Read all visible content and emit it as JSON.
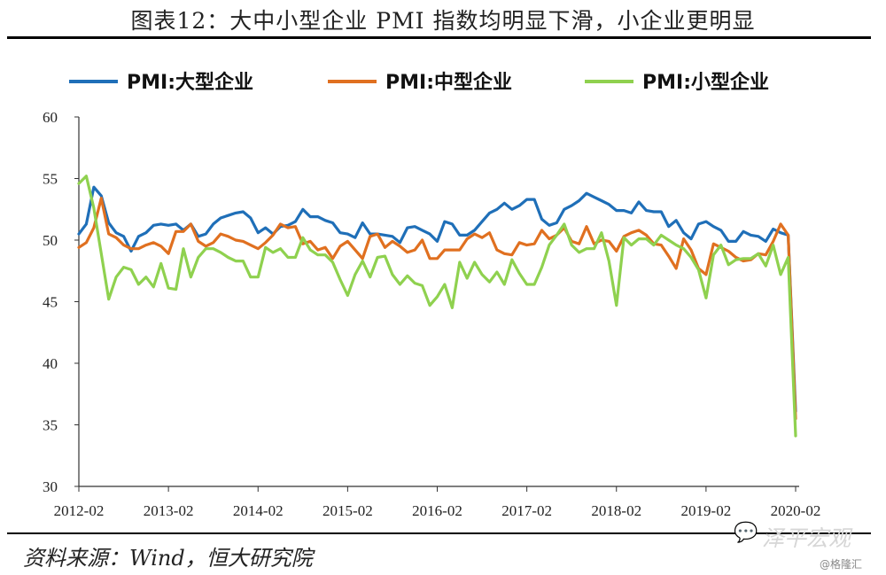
{
  "title": "图表12：大中小型企业 PMI 指数均明显下滑，小企业更明显",
  "source": "资料来源：Wind，恒大研究院",
  "watermark": {
    "name": "泽平宏观",
    "credit": "@格隆汇"
  },
  "chart_data": {
    "type": "line",
    "title": "图表12：大中小型企业 PMI 指数均明显下滑，小企业更明显",
    "xlabel": "",
    "ylabel": "",
    "ylim": [
      30,
      60
    ],
    "yticks": [
      30,
      35,
      40,
      45,
      50,
      55,
      60
    ],
    "xticks": [
      "2012-02",
      "2013-02",
      "2014-02",
      "2015-02",
      "2016-02",
      "2017-02",
      "2018-02",
      "2019-02",
      "2020-02"
    ],
    "legend_position": "top",
    "grid": false,
    "series": [
      {
        "name": "PMI:大型企业",
        "color": "#1f6fb8",
        "points": [
          [
            "2012-02",
            50.5
          ],
          [
            "2012-03",
            51.3
          ],
          [
            "2012-04",
            54.3
          ],
          [
            "2012-05",
            53.6
          ],
          [
            "2012-06",
            51.4
          ],
          [
            "2012-07",
            50.6
          ],
          [
            "2012-08",
            50.3
          ],
          [
            "2012-09",
            49.1
          ],
          [
            "2012-10",
            50.3
          ],
          [
            "2012-11",
            50.6
          ],
          [
            "2012-12",
            51.2
          ],
          [
            "2013-01",
            51.3
          ],
          [
            "2013-02",
            51.2
          ],
          [
            "2013-03",
            51.3
          ],
          [
            "2013-04",
            50.8
          ],
          [
            "2013-05",
            51.3
          ],
          [
            "2013-06",
            50.3
          ],
          [
            "2013-07",
            50.5
          ],
          [
            "2013-08",
            51.3
          ],
          [
            "2013-09",
            51.8
          ],
          [
            "2013-10",
            52.0
          ],
          [
            "2013-11",
            52.2
          ],
          [
            "2013-12",
            52.3
          ],
          [
            "2014-01",
            51.8
          ],
          [
            "2014-02",
            50.6
          ],
          [
            "2014-03",
            51.0
          ],
          [
            "2014-04",
            50.5
          ],
          [
            "2014-05",
            51.1
          ],
          [
            "2014-06",
            51.2
          ],
          [
            "2014-07",
            51.5
          ],
          [
            "2014-08",
            52.5
          ],
          [
            "2014-09",
            51.9
          ],
          [
            "2014-10",
            51.9
          ],
          [
            "2014-11",
            51.6
          ],
          [
            "2014-12",
            51.4
          ],
          [
            "2015-01",
            50.6
          ],
          [
            "2015-02",
            50.5
          ],
          [
            "2015-03",
            50.2
          ],
          [
            "2015-04",
            51.4
          ],
          [
            "2015-05",
            50.5
          ],
          [
            "2015-06",
            50.5
          ],
          [
            "2015-07",
            50.4
          ],
          [
            "2015-08",
            50.3
          ],
          [
            "2015-09",
            49.8
          ],
          [
            "2015-10",
            51.0
          ],
          [
            "2015-11",
            51.1
          ],
          [
            "2015-12",
            50.8
          ],
          [
            "2016-01",
            50.5
          ],
          [
            "2016-02",
            49.9
          ],
          [
            "2016-03",
            51.5
          ],
          [
            "2016-04",
            51.3
          ],
          [
            "2016-05",
            50.4
          ],
          [
            "2016-06",
            50.4
          ],
          [
            "2016-07",
            50.8
          ],
          [
            "2016-08",
            51.5
          ],
          [
            "2016-09",
            52.2
          ],
          [
            "2016-10",
            52.5
          ],
          [
            "2016-11",
            53.0
          ],
          [
            "2016-12",
            52.5
          ],
          [
            "2017-01",
            52.8
          ],
          [
            "2017-02",
            53.3
          ],
          [
            "2017-03",
            53.3
          ],
          [
            "2017-04",
            51.7
          ],
          [
            "2017-05",
            51.2
          ],
          [
            "2017-06",
            51.4
          ],
          [
            "2017-07",
            52.5
          ],
          [
            "2017-08",
            52.8
          ],
          [
            "2017-09",
            53.2
          ],
          [
            "2017-10",
            53.8
          ],
          [
            "2017-11",
            53.5
          ],
          [
            "2017-12",
            53.2
          ],
          [
            "2018-01",
            52.9
          ],
          [
            "2018-02",
            52.4
          ],
          [
            "2018-03",
            52.4
          ],
          [
            "2018-04",
            52.2
          ],
          [
            "2018-05",
            53.1
          ],
          [
            "2018-06",
            52.4
          ],
          [
            "2018-07",
            52.3
          ],
          [
            "2018-08",
            52.3
          ],
          [
            "2018-09",
            51.1
          ],
          [
            "2018-10",
            51.6
          ],
          [
            "2018-11",
            50.6
          ],
          [
            "2018-12",
            50.1
          ],
          [
            "2019-01",
            51.3
          ],
          [
            "2019-02",
            51.5
          ],
          [
            "2019-03",
            51.1
          ],
          [
            "2019-04",
            50.8
          ],
          [
            "2019-05",
            49.9
          ],
          [
            "2019-06",
            49.9
          ],
          [
            "2019-07",
            50.7
          ],
          [
            "2019-08",
            50.4
          ],
          [
            "2019-09",
            50.3
          ],
          [
            "2019-10",
            49.9
          ],
          [
            "2019-11",
            50.9
          ],
          [
            "2019-12",
            50.6
          ],
          [
            "2020-01",
            50.4
          ],
          [
            "2020-02",
            36.1
          ]
        ]
      },
      {
        "name": "PMI:中型企业",
        "color": "#e07020",
        "points": [
          [
            "2012-02",
            49.4
          ],
          [
            "2012-03",
            49.8
          ],
          [
            "2012-04",
            51.0
          ],
          [
            "2012-05",
            53.4
          ],
          [
            "2012-06",
            50.5
          ],
          [
            "2012-07",
            50.2
          ],
          [
            "2012-08",
            49.6
          ],
          [
            "2012-09",
            49.3
          ],
          [
            "2012-10",
            49.3
          ],
          [
            "2012-11",
            49.6
          ],
          [
            "2012-12",
            49.8
          ],
          [
            "2013-01",
            49.5
          ],
          [
            "2013-02",
            48.9
          ],
          [
            "2013-03",
            50.7
          ],
          [
            "2013-04",
            50.7
          ],
          [
            "2013-05",
            51.3
          ],
          [
            "2013-06",
            49.9
          ],
          [
            "2013-07",
            49.5
          ],
          [
            "2013-08",
            49.8
          ],
          [
            "2013-09",
            50.5
          ],
          [
            "2013-10",
            50.3
          ],
          [
            "2013-11",
            50.0
          ],
          [
            "2013-12",
            49.9
          ],
          [
            "2014-01",
            49.6
          ],
          [
            "2014-02",
            49.3
          ],
          [
            "2014-03",
            49.8
          ],
          [
            "2014-04",
            50.4
          ],
          [
            "2014-05",
            51.3
          ],
          [
            "2014-06",
            51.0
          ],
          [
            "2014-07",
            51.1
          ],
          [
            "2014-08",
            49.7
          ],
          [
            "2014-09",
            49.9
          ],
          [
            "2014-10",
            49.2
          ],
          [
            "2014-11",
            49.4
          ],
          [
            "2014-12",
            48.5
          ],
          [
            "2015-01",
            49.5
          ],
          [
            "2015-02",
            49.9
          ],
          [
            "2015-03",
            49.2
          ],
          [
            "2015-04",
            48.5
          ],
          [
            "2015-05",
            50.3
          ],
          [
            "2015-06",
            50.5
          ],
          [
            "2015-07",
            49.4
          ],
          [
            "2015-08",
            49.9
          ],
          [
            "2015-09",
            49.5
          ],
          [
            "2015-10",
            49.0
          ],
          [
            "2015-11",
            49.2
          ],
          [
            "2015-12",
            50.0
          ],
          [
            "2016-01",
            48.5
          ],
          [
            "2016-02",
            48.5
          ],
          [
            "2016-03",
            49.2
          ],
          [
            "2016-04",
            49.2
          ],
          [
            "2016-05",
            49.2
          ],
          [
            "2016-06",
            50.1
          ],
          [
            "2016-07",
            50.5
          ],
          [
            "2016-08",
            50.2
          ],
          [
            "2016-09",
            50.6
          ],
          [
            "2016-10",
            49.2
          ],
          [
            "2016-11",
            48.9
          ],
          [
            "2016-12",
            48.8
          ],
          [
            "2017-01",
            49.8
          ],
          [
            "2017-02",
            49.6
          ],
          [
            "2017-03",
            49.7
          ],
          [
            "2017-04",
            50.8
          ],
          [
            "2017-05",
            50.1
          ],
          [
            "2017-06",
            50.4
          ],
          [
            "2017-07",
            51.0
          ],
          [
            "2017-08",
            49.9
          ],
          [
            "2017-09",
            49.7
          ],
          [
            "2017-10",
            51.1
          ],
          [
            "2017-11",
            49.7
          ],
          [
            "2017-12",
            50.0
          ],
          [
            "2018-01",
            49.9
          ],
          [
            "2018-02",
            49.1
          ],
          [
            "2018-03",
            50.3
          ],
          [
            "2018-04",
            50.6
          ],
          [
            "2018-05",
            50.8
          ],
          [
            "2018-06",
            50.4
          ],
          [
            "2018-07",
            49.7
          ],
          [
            "2018-08",
            49.6
          ],
          [
            "2018-09",
            48.7
          ],
          [
            "2018-10",
            47.7
          ],
          [
            "2018-11",
            50.1
          ],
          [
            "2018-12",
            49.2
          ],
          [
            "2019-01",
            47.7
          ],
          [
            "2019-02",
            47.2
          ],
          [
            "2019-03",
            49.7
          ],
          [
            "2019-04",
            49.4
          ],
          [
            "2019-05",
            49.1
          ],
          [
            "2019-06",
            48.6
          ],
          [
            "2019-07",
            48.3
          ],
          [
            "2019-08",
            48.4
          ],
          [
            "2019-09",
            48.9
          ],
          [
            "2019-10",
            48.8
          ],
          [
            "2019-11",
            49.9
          ],
          [
            "2019-12",
            51.3
          ],
          [
            "2020-01",
            50.4
          ],
          [
            "2020-02",
            35.5
          ]
        ]
      },
      {
        "name": "PMI:小型企业",
        "color": "#8fd14f",
        "points": [
          [
            "2012-02",
            54.6
          ],
          [
            "2012-03",
            55.2
          ],
          [
            "2012-04",
            52.6
          ],
          [
            "2012-05",
            48.9
          ],
          [
            "2012-06",
            45.2
          ],
          [
            "2012-07",
            47.0
          ],
          [
            "2012-08",
            47.8
          ],
          [
            "2012-09",
            47.6
          ],
          [
            "2012-10",
            46.4
          ],
          [
            "2012-11",
            47.0
          ],
          [
            "2012-12",
            46.2
          ],
          [
            "2013-01",
            48.1
          ],
          [
            "2013-02",
            46.1
          ],
          [
            "2013-03",
            46.0
          ],
          [
            "2013-04",
            49.3
          ],
          [
            "2013-05",
            47.0
          ],
          [
            "2013-06",
            48.6
          ],
          [
            "2013-07",
            49.3
          ],
          [
            "2013-08",
            49.3
          ],
          [
            "2013-09",
            49.0
          ],
          [
            "2013-10",
            48.6
          ],
          [
            "2013-11",
            48.3
          ],
          [
            "2013-12",
            48.3
          ],
          [
            "2014-01",
            47.0
          ],
          [
            "2014-02",
            47.0
          ],
          [
            "2014-03",
            49.4
          ],
          [
            "2014-04",
            49.0
          ],
          [
            "2014-05",
            49.3
          ],
          [
            "2014-06",
            48.6
          ],
          [
            "2014-07",
            48.6
          ],
          [
            "2014-08",
            50.2
          ],
          [
            "2014-09",
            49.2
          ],
          [
            "2014-10",
            48.8
          ],
          [
            "2014-11",
            48.8
          ],
          [
            "2014-12",
            48.2
          ],
          [
            "2015-01",
            46.8
          ],
          [
            "2015-02",
            45.5
          ],
          [
            "2015-03",
            47.2
          ],
          [
            "2015-04",
            48.3
          ],
          [
            "2015-05",
            47.0
          ],
          [
            "2015-06",
            48.6
          ],
          [
            "2015-07",
            48.7
          ],
          [
            "2015-08",
            47.2
          ],
          [
            "2015-09",
            46.4
          ],
          [
            "2015-10",
            47.1
          ],
          [
            "2015-11",
            46.5
          ],
          [
            "2015-12",
            46.3
          ],
          [
            "2016-01",
            44.7
          ],
          [
            "2016-02",
            45.4
          ],
          [
            "2016-03",
            46.4
          ],
          [
            "2016-04",
            44.5
          ],
          [
            "2016-05",
            48.2
          ],
          [
            "2016-06",
            46.9
          ],
          [
            "2016-07",
            48.2
          ],
          [
            "2016-08",
            47.2
          ],
          [
            "2016-09",
            46.6
          ],
          [
            "2016-10",
            47.4
          ],
          [
            "2016-11",
            46.4
          ],
          [
            "2016-12",
            48.4
          ],
          [
            "2017-01",
            47.3
          ],
          [
            "2017-02",
            46.4
          ],
          [
            "2017-03",
            46.4
          ],
          [
            "2017-04",
            47.8
          ],
          [
            "2017-05",
            49.6
          ],
          [
            "2017-06",
            50.4
          ],
          [
            "2017-07",
            51.3
          ],
          [
            "2017-08",
            49.6
          ],
          [
            "2017-09",
            49.0
          ],
          [
            "2017-10",
            49.3
          ],
          [
            "2017-11",
            49.3
          ],
          [
            "2017-12",
            50.6
          ],
          [
            "2018-01",
            48.3
          ],
          [
            "2018-02",
            44.7
          ],
          [
            "2018-03",
            50.2
          ],
          [
            "2018-04",
            49.6
          ],
          [
            "2018-05",
            50.1
          ],
          [
            "2018-06",
            50.1
          ],
          [
            "2018-07",
            49.6
          ],
          [
            "2018-08",
            50.4
          ],
          [
            "2018-09",
            50.0
          ],
          [
            "2018-10",
            49.6
          ],
          [
            "2018-11",
            49.3
          ],
          [
            "2018-12",
            48.6
          ],
          [
            "2019-01",
            47.6
          ],
          [
            "2019-02",
            45.3
          ],
          [
            "2019-03",
            48.8
          ],
          [
            "2019-04",
            49.6
          ],
          [
            "2019-05",
            48.0
          ],
          [
            "2019-06",
            48.4
          ],
          [
            "2019-07",
            48.5
          ],
          [
            "2019-08",
            48.5
          ],
          [
            "2019-09",
            48.9
          ],
          [
            "2019-10",
            47.9
          ],
          [
            "2019-11",
            49.6
          ],
          [
            "2019-12",
            47.2
          ],
          [
            "2020-01",
            48.6
          ],
          [
            "2020-02",
            34.1
          ]
        ]
      }
    ]
  }
}
